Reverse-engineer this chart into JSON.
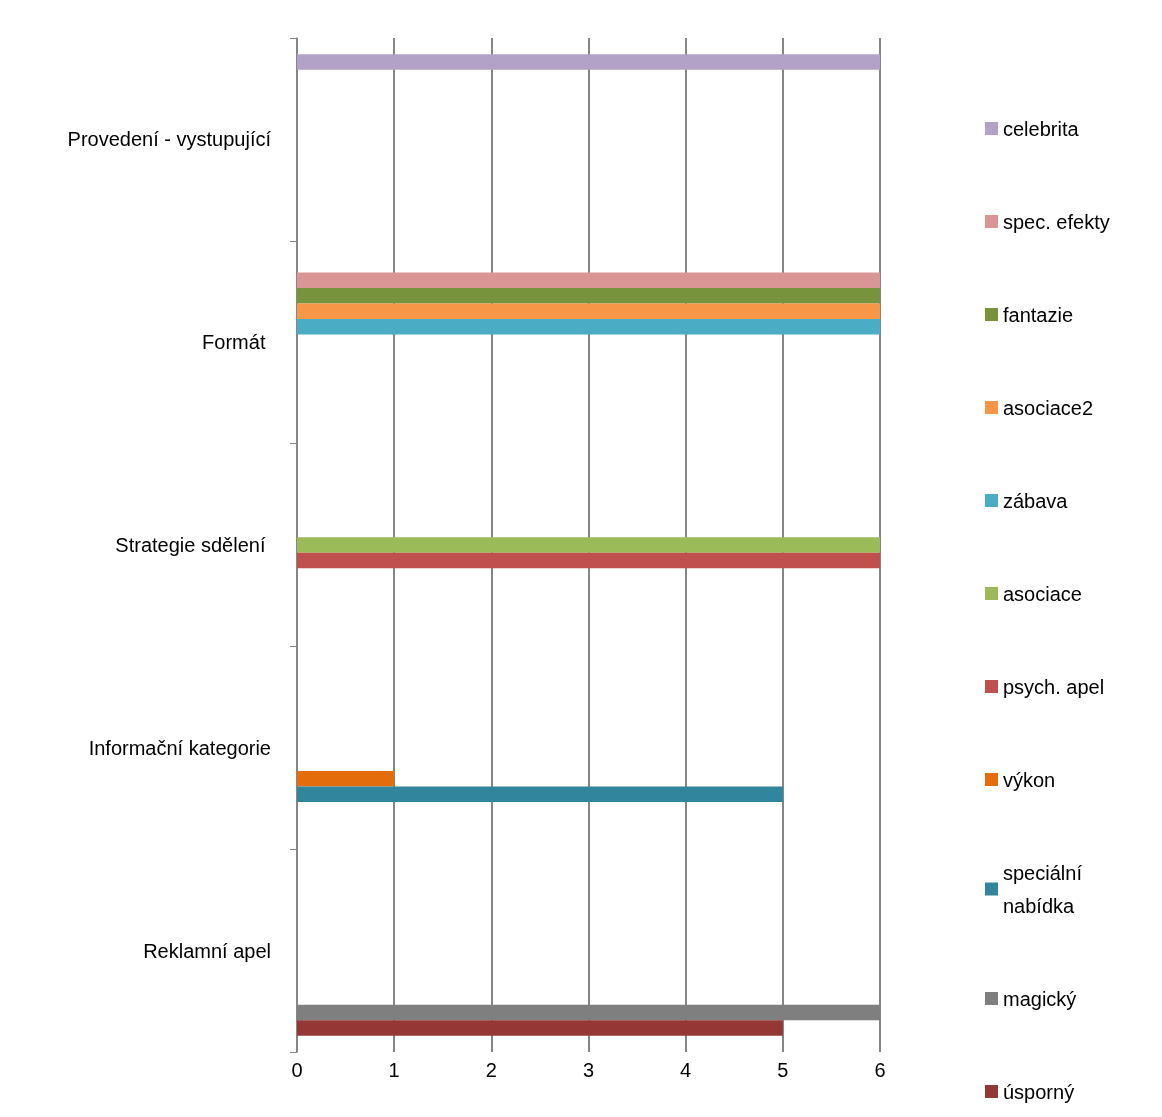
{
  "chart_data": {
    "type": "bar",
    "orientation": "horizontal",
    "categories": [
      "Provedení - vystupující",
      "Formát ",
      "Strategie sdělení ",
      "Informační kategorie",
      "Reklamní apel"
    ],
    "series": [
      {
        "name": "celebrita",
        "color": "#b3a2c7",
        "values": [
          6,
          null,
          null,
          null,
          null
        ]
      },
      {
        "name": "spec. efekty",
        "color": "#d99694",
        "values": [
          null,
          6,
          null,
          null,
          null
        ]
      },
      {
        "name": "fantazie",
        "color": "#77933c",
        "values": [
          null,
          6,
          null,
          null,
          null
        ]
      },
      {
        "name": "asociace2",
        "color": "#f79646",
        "values": [
          null,
          6,
          null,
          null,
          null
        ]
      },
      {
        "name": "zábava",
        "color": "#4bacc6",
        "values": [
          null,
          6,
          null,
          null,
          null
        ]
      },
      {
        "name": "asociace",
        "color": "#9bbb59",
        "values": [
          null,
          null,
          6,
          null,
          null
        ]
      },
      {
        "name": "psych. apel",
        "color": "#c0504d",
        "values": [
          null,
          null,
          6,
          null,
          null
        ]
      },
      {
        "name": "výkon",
        "color": "#e46c0a",
        "values": [
          null,
          null,
          null,
          1,
          null
        ]
      },
      {
        "name": "speciální nabídka",
        "color": "#31859c",
        "values": [
          null,
          null,
          null,
          5,
          null
        ]
      },
      {
        "name": "magický",
        "color": "#7f7f7f",
        "values": [
          null,
          null,
          null,
          null,
          6
        ]
      },
      {
        "name": "úsporný",
        "color": "#953735",
        "values": [
          null,
          null,
          null,
          null,
          5
        ]
      }
    ],
    "xlim": [
      0,
      6
    ],
    "xticks": [
      0,
      1,
      2,
      3,
      4,
      5,
      6
    ],
    "grid": "x",
    "legend": "right"
  }
}
